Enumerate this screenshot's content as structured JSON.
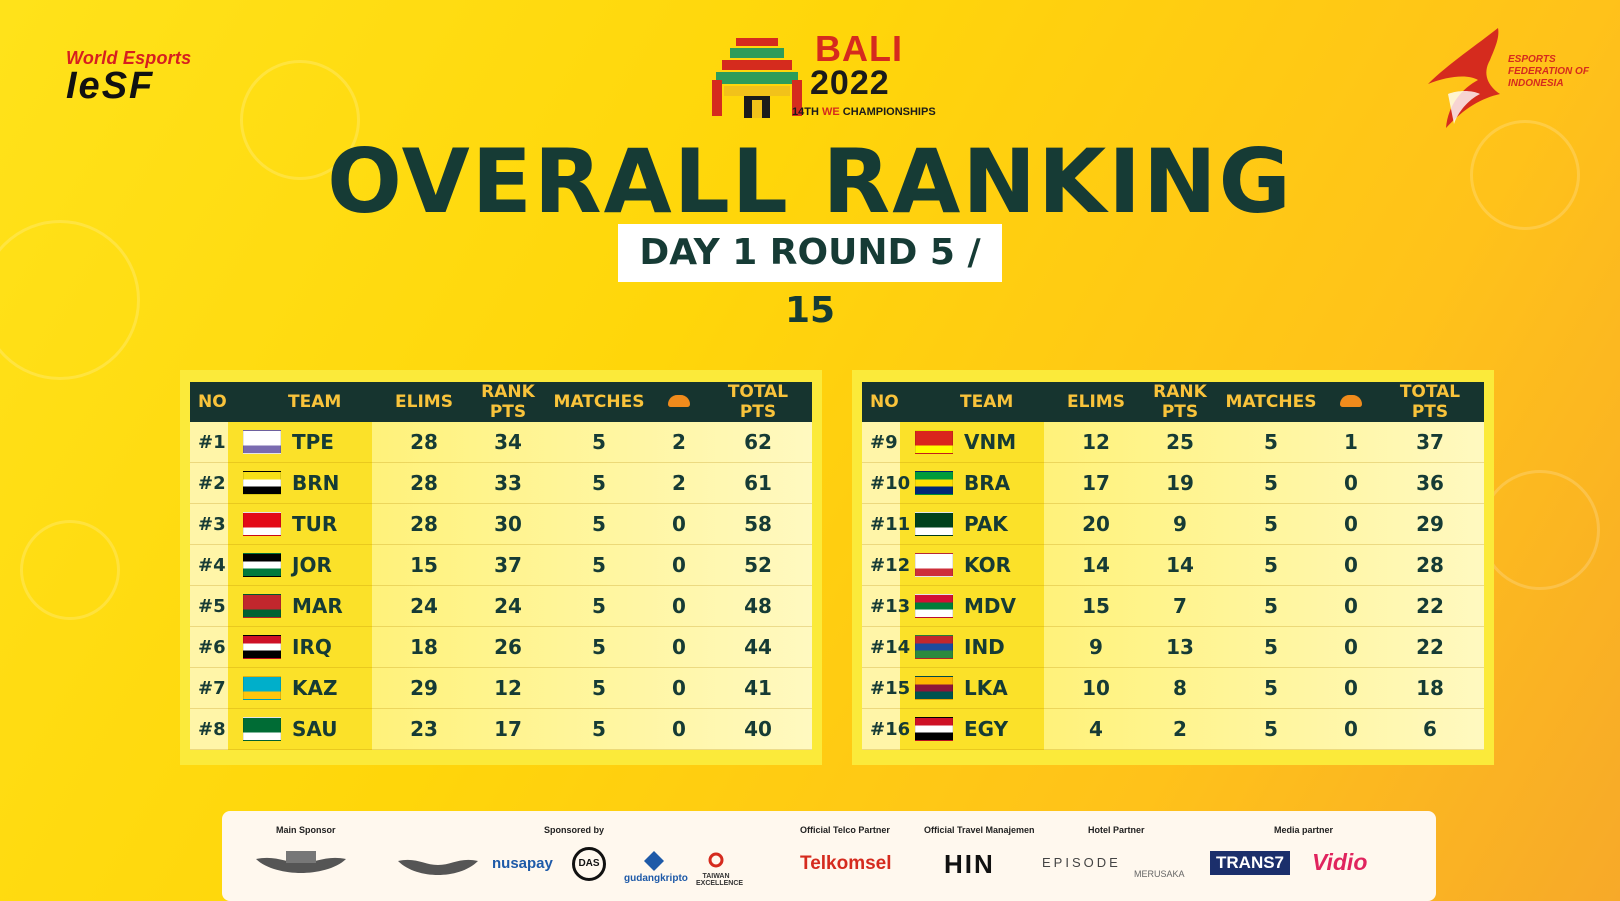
{
  "header": {
    "iesf_top": "World Esports",
    "iesf_main": "IeSF",
    "bali_city": "BALI",
    "bali_year": "2022",
    "bali_sub_a": "14TH ",
    "bali_sub_b": "WE",
    "bali_sub_c": " CHAMPIONSHIPS",
    "efi_text": "ESPORTS FEDERATION OF INDONESIA"
  },
  "title": "OVERALL RANKING",
  "subtitle": "DAY 1 ROUND 5 / 15",
  "columns": {
    "no": "NO",
    "team": "TEAM",
    "elims": "ELIMS",
    "rank_pts": "RANK PTS",
    "matches": "MATCHES",
    "total_pts": "TOTAL PTS"
  },
  "left_rows": [
    {
      "no": "#1",
      "team": "TPE",
      "flag": "TPE",
      "elims": "28",
      "rank_pts": "34",
      "matches": "5",
      "chicken": "2",
      "total": "62"
    },
    {
      "no": "#2",
      "team": "BRN",
      "flag": "BRN",
      "elims": "28",
      "rank_pts": "33",
      "matches": "5",
      "chicken": "2",
      "total": "61"
    },
    {
      "no": "#3",
      "team": "TUR",
      "flag": "TUR",
      "elims": "28",
      "rank_pts": "30",
      "matches": "5",
      "chicken": "0",
      "total": "58"
    },
    {
      "no": "#4",
      "team": "JOR",
      "flag": "JOR",
      "elims": "15",
      "rank_pts": "37",
      "matches": "5",
      "chicken": "0",
      "total": "52"
    },
    {
      "no": "#5",
      "team": "MAR",
      "flag": "MAR",
      "elims": "24",
      "rank_pts": "24",
      "matches": "5",
      "chicken": "0",
      "total": "48"
    },
    {
      "no": "#6",
      "team": "IRQ",
      "flag": "IRQ",
      "elims": "18",
      "rank_pts": "26",
      "matches": "5",
      "chicken": "0",
      "total": "44"
    },
    {
      "no": "#7",
      "team": "KAZ",
      "flag": "KAZ",
      "elims": "29",
      "rank_pts": "12",
      "matches": "5",
      "chicken": "0",
      "total": "41"
    },
    {
      "no": "#8",
      "team": "SAU",
      "flag": "SAU",
      "elims": "23",
      "rank_pts": "17",
      "matches": "5",
      "chicken": "0",
      "total": "40"
    }
  ],
  "right_rows": [
    {
      "no": "#9",
      "team": "VNM",
      "flag": "VNM",
      "elims": "12",
      "rank_pts": "25",
      "matches": "5",
      "chicken": "1",
      "total": "37"
    },
    {
      "no": "#10",
      "team": "BRA",
      "flag": "BRA",
      "elims": "17",
      "rank_pts": "19",
      "matches": "5",
      "chicken": "0",
      "total": "36"
    },
    {
      "no": "#11",
      "team": "PAK",
      "flag": "PAK",
      "elims": "20",
      "rank_pts": "9",
      "matches": "5",
      "chicken": "0",
      "total": "29"
    },
    {
      "no": "#12",
      "team": "KOR",
      "flag": "KOR",
      "elims": "14",
      "rank_pts": "14",
      "matches": "5",
      "chicken": "0",
      "total": "28"
    },
    {
      "no": "#13",
      "team": "MDV",
      "flag": "MDV",
      "elims": "15",
      "rank_pts": "7",
      "matches": "5",
      "chicken": "0",
      "total": "22"
    },
    {
      "no": "#14",
      "team": "IND",
      "flag": "IND",
      "elims": "9",
      "rank_pts": "13",
      "matches": "5",
      "chicken": "0",
      "total": "22"
    },
    {
      "no": "#15",
      "team": "LKA",
      "flag": "LKA",
      "elims": "10",
      "rank_pts": "8",
      "matches": "5",
      "chicken": "0",
      "total": "18"
    },
    {
      "no": "#16",
      "team": "EGY",
      "flag": "EGY",
      "elims": "4",
      "rank_pts": "2",
      "matches": "5",
      "chicken": "0",
      "total": "6"
    }
  ],
  "flag_colors": {
    "TPE": [
      "#ffffff",
      "#ffffff",
      "#7a6bb0"
    ],
    "BRN": [
      "#f7e017",
      "#ffffff",
      "#000000"
    ],
    "TUR": [
      "#e30a17",
      "#e30a17",
      "#ffffff"
    ],
    "JOR": [
      "#000000",
      "#ffffff",
      "#007a3d"
    ],
    "MAR": [
      "#c1272d",
      "#c1272d",
      "#006233"
    ],
    "IRQ": [
      "#ce1126",
      "#ffffff",
      "#000000"
    ],
    "KAZ": [
      "#00afca",
      "#00afca",
      "#fec50c"
    ],
    "SAU": [
      "#006c35",
      "#006c35",
      "#ffffff"
    ],
    "VNM": [
      "#da251d",
      "#da251d",
      "#ffff00"
    ],
    "BRA": [
      "#009c3b",
      "#ffdf00",
      "#002776"
    ],
    "PAK": [
      "#01411c",
      "#01411c",
      "#ffffff"
    ],
    "KOR": [
      "#ffffff",
      "#ffffff",
      "#cd2e3a"
    ],
    "MDV": [
      "#d21034",
      "#007e3a",
      "#ffffff"
    ],
    "IND": [
      "#c1272d",
      "#1b4b9e",
      "#2b8a3e"
    ],
    "LKA": [
      "#ffb700",
      "#8d153a",
      "#00534e"
    ],
    "EGY": [
      "#ce1126",
      "#ffffff",
      "#000000"
    ]
  },
  "sponsors": {
    "main_label": "Main Sponsor",
    "sponsored_label": "Sponsored by",
    "telco_label": "Official Telco Partner",
    "travel_label": "Official Travel Manajemen",
    "hotel_label": "Hotel Partner",
    "media_label": "Media partner",
    "logos": {
      "nusapay": "nusapay",
      "das": "DAS",
      "gudangkripto": "gudangkripto",
      "taiwan": "TAIWAN EXCELLENCE",
      "telkomsel": "Telkomsel",
      "hin": "HIN",
      "episode": "EPISODE",
      "merusaka": "MERUSAKA",
      "trans7": "TRANS7",
      "vidio": "Vidio"
    }
  },
  "accent_colors": {
    "title": "#163b35",
    "header_bg": "#16342f",
    "header_text": "#f9c33b",
    "red": "#d52b1e"
  }
}
